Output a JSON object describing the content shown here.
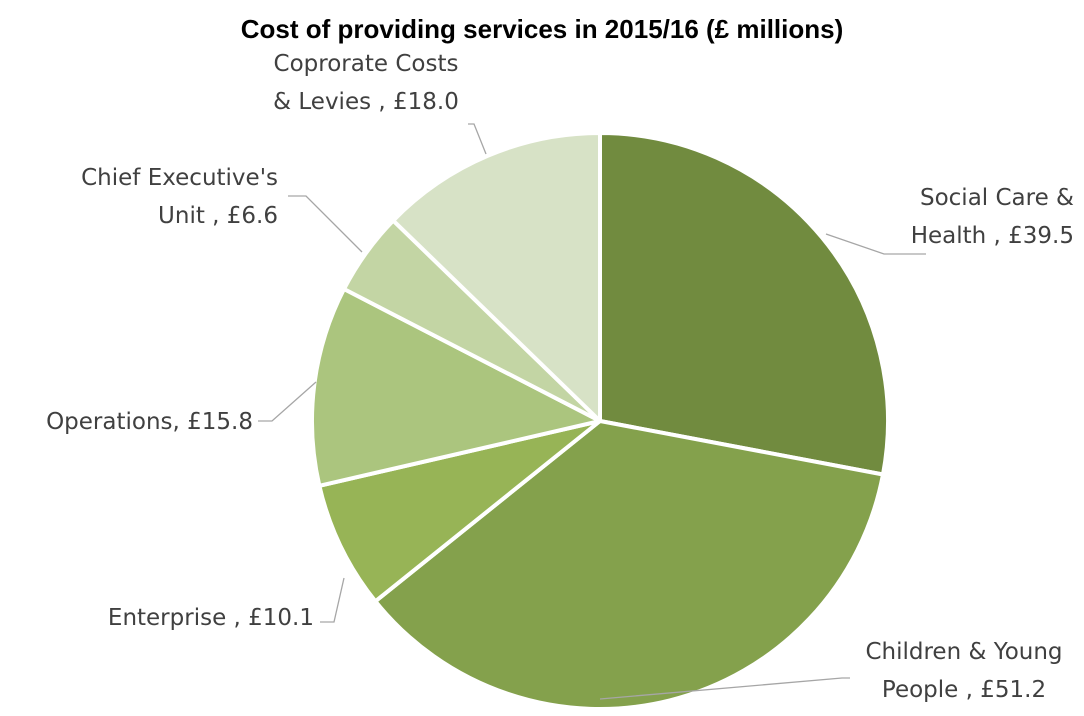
{
  "chart_data": {
    "type": "pie",
    "title": "Cost of providing services in 2015/16 (£ millions)",
    "slices": [
      {
        "name": "Social Care & Health",
        "value": 39.5,
        "label_lines": [
          "Social Care &",
          "Health , £39.5"
        ],
        "color": "#718b3f"
      },
      {
        "name": "Children & Young People",
        "value": 51.2,
        "label_lines": [
          "Children & Young",
          "People , £51.2"
        ],
        "color": "#84a14c"
      },
      {
        "name": "Enterprise",
        "value": 10.1,
        "label_lines": [
          "Enterprise , £10.1"
        ],
        "color": "#97b456"
      },
      {
        "name": "Operations",
        "value": 15.8,
        "label_lines": [
          "Operations, £15.8"
        ],
        "color": "#abc57e"
      },
      {
        "name": "Chief Executive's Unit",
        "value": 6.6,
        "label_lines": [
          "Chief Executive's",
          "Unit , £6.6"
        ],
        "color": "#c3d5a4"
      },
      {
        "name": "Coprorate Costs & Levies",
        "value": 18.0,
        "label_lines": [
          "Coprorate Costs",
          "& Levies , £18.0"
        ],
        "color": "#d7e2c6"
      }
    ]
  }
}
